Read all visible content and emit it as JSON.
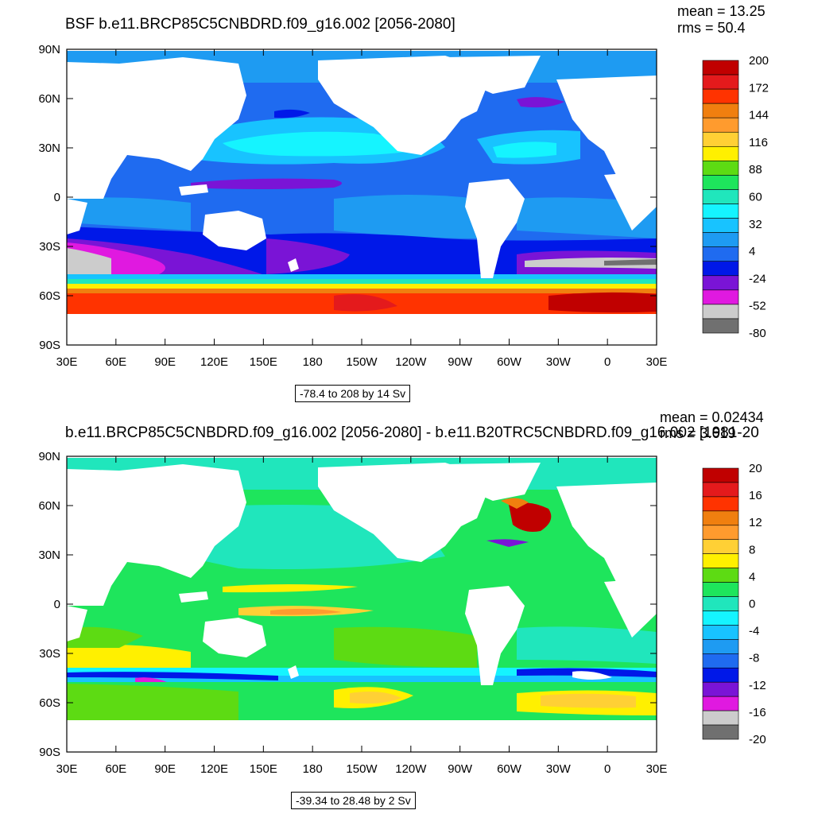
{
  "panels": [
    {
      "title": "BSF b.e11.BRCP85C5CNBDRD.f09_g16.002 [2056-2080]",
      "mean": "mean = 13.25",
      "rms": "rms = 50.4",
      "range": "-78.4 to 208 by 14 Sv",
      "lat_labels": [
        "90N",
        "60N",
        "30N",
        "0",
        "30S",
        "60S",
        "90S"
      ],
      "lon_labels": [
        "30E",
        "60E",
        "90E",
        "120E",
        "150E",
        "180",
        "150W",
        "120W",
        "90W",
        "60W",
        "30W",
        "0",
        "30E"
      ],
      "colorbar": {
        "labels": [
          "200",
          "172",
          "144",
          "116",
          "88",
          "60",
          "32",
          "4",
          "-24",
          "-52",
          "-80"
        ],
        "colors": [
          "#c00000",
          "#e41a1c",
          "#ff3300",
          "#f07f0f",
          "#ff9b2e",
          "#ffd035",
          "#fff000",
          "#5ddb13",
          "#1ee55c",
          "#20e6bc",
          "#15f4ff",
          "#18c3ff",
          "#1e9bf2",
          "#1f6bf0",
          "#0018e8",
          "#7a14d6",
          "#e019e0",
          "#cccccc",
          "#707070"
        ]
      }
    },
    {
      "title": "b.e11.BRCP85C5CNBDRD.f09_g16.002 [2056-2080] - b.e11.B20TRC5CNBDRD.f09_g16.002 [1981-20",
      "mean": "mean = 0.02434",
      "rms": "rms = 3.619",
      "range": "-39.34 to 28.48 by 2 Sv",
      "lat_labels": [
        "90N",
        "60N",
        "30N",
        "0",
        "30S",
        "60S",
        "90S"
      ],
      "lon_labels": [
        "30E",
        "60E",
        "90E",
        "120E",
        "150E",
        "180",
        "150W",
        "120W",
        "90W",
        "60W",
        "30W",
        "0",
        "30E"
      ],
      "colorbar": {
        "labels": [
          "20",
          "16",
          "12",
          "8",
          "4",
          "0",
          "-4",
          "-8",
          "-12",
          "-16",
          "-20"
        ],
        "colors": [
          "#c00000",
          "#e41a1c",
          "#ff3300",
          "#f07f0f",
          "#ff9b2e",
          "#ffd035",
          "#fff000",
          "#5ddb13",
          "#1ee55c",
          "#20e6bc",
          "#15f4ff",
          "#18c3ff",
          "#1e9bf2",
          "#1f6bf0",
          "#0018e8",
          "#7a14d6",
          "#e019e0",
          "#cccccc",
          "#707070"
        ]
      }
    }
  ]
}
